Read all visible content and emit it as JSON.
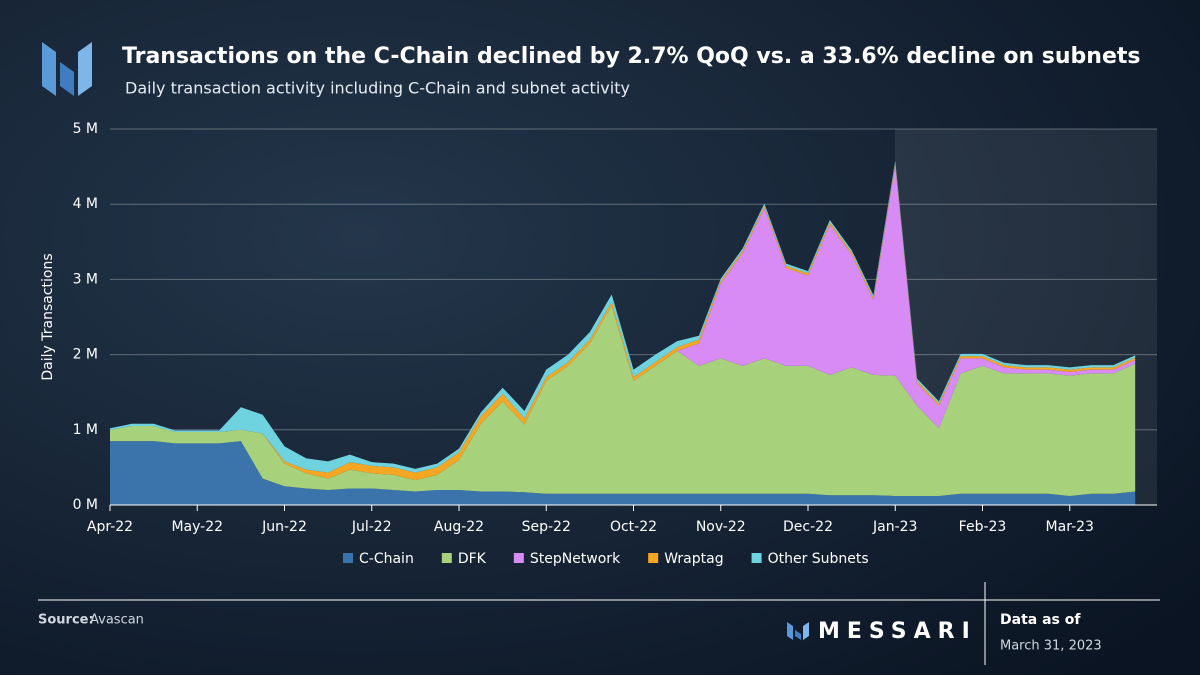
{
  "chart_data": {
    "type": "stacked-area",
    "title": "Transactions on the C-Chain declined by 2.7% QoQ vs. a 33.6% decline on subnets",
    "subtitle": "Daily transaction activity including C-Chain and subnet activity",
    "y_label": "Daily Transactions",
    "categories": [
      "Apr-22",
      null,
      null,
      null,
      "May-22",
      null,
      null,
      null,
      "Jun-22",
      null,
      null,
      null,
      "Jul-22",
      null,
      null,
      null,
      "Aug-22",
      null,
      null,
      null,
      "Sep-22",
      null,
      null,
      null,
      "Oct-22",
      null,
      null,
      null,
      "Nov-22",
      null,
      null,
      null,
      "Dec-22",
      null,
      null,
      null,
      "Jan-23",
      null,
      null,
      null,
      "Feb-23",
      null,
      null,
      null,
      "Mar-23",
      null,
      null,
      null
    ],
    "ylim": [
      0,
      5
    ],
    "yticks": [
      {
        "value": 0,
        "label": "0 M"
      },
      {
        "value": 1,
        "label": "1 M"
      },
      {
        "value": 2,
        "label": "2 M"
      },
      {
        "value": 3,
        "label": "3 M"
      },
      {
        "value": 4,
        "label": "4 M"
      },
      {
        "value": 5,
        "label": "5 M"
      }
    ],
    "grid": true,
    "legend": "bottom",
    "series": [
      {
        "name": "C-Chain",
        "color": "#3b74ab",
        "values": [
          0.85,
          0.85,
          0.85,
          0.82,
          0.82,
          0.82,
          0.85,
          0.35,
          0.25,
          0.22,
          0.2,
          0.22,
          0.22,
          0.2,
          0.18,
          0.2,
          0.2,
          0.18,
          0.18,
          0.17,
          0.15,
          0.15,
          0.15,
          0.15,
          0.15,
          0.15,
          0.15,
          0.15,
          0.15,
          0.15,
          0.15,
          0.15,
          0.15,
          0.13,
          0.13,
          0.13,
          0.12,
          0.12,
          0.12,
          0.15,
          0.15,
          0.15,
          0.15,
          0.15,
          0.12,
          0.15,
          0.15,
          0.18
        ]
      },
      {
        "name": "DFK",
        "color": "#a8d17c",
        "values": [
          0.15,
          0.2,
          0.2,
          0.15,
          0.15,
          0.15,
          0.15,
          0.6,
          0.3,
          0.2,
          0.15,
          0.25,
          0.2,
          0.2,
          0.15,
          0.2,
          0.4,
          0.9,
          1.2,
          0.9,
          1.5,
          1.7,
          2.0,
          2.5,
          1.5,
          1.7,
          1.9,
          1.7,
          1.8,
          1.7,
          1.8,
          1.7,
          1.7,
          1.6,
          1.7,
          1.6,
          1.6,
          1.2,
          0.9,
          1.6,
          1.7,
          1.6,
          1.6,
          1.6,
          1.6,
          1.6,
          1.6,
          1.7
        ]
      },
      {
        "name": "StepNetwork",
        "color": "#d88af5",
        "values": [
          0,
          0,
          0,
          0,
          0,
          0,
          0,
          0,
          0,
          0,
          0,
          0,
          0,
          0,
          0,
          0,
          0,
          0,
          0,
          0,
          0,
          0,
          0,
          0,
          0,
          0,
          0,
          0.3,
          1.0,
          1.5,
          2.0,
          1.3,
          1.2,
          2.0,
          1.5,
          1.0,
          2.8,
          0.3,
          0.3,
          0.2,
          0.1,
          0.08,
          0.05,
          0.05,
          0.05,
          0.05,
          0.05,
          0.05
        ]
      },
      {
        "name": "Wraptag",
        "color": "#f5a623",
        "values": [
          0,
          0,
          0,
          0,
          0,
          0,
          0,
          0,
          0.03,
          0.05,
          0.08,
          0.1,
          0.1,
          0.1,
          0.1,
          0.1,
          0.1,
          0.1,
          0.1,
          0.08,
          0.05,
          0.05,
          0.05,
          0.05,
          0.05,
          0.05,
          0.05,
          0.05,
          0.03,
          0.03,
          0.03,
          0.03,
          0.03,
          0.03,
          0.03,
          0.03,
          0.03,
          0.03,
          0.03,
          0.03,
          0.03,
          0.03,
          0.03,
          0.03,
          0.03,
          0.03,
          0.03,
          0.03
        ]
      },
      {
        "name": "Other Subnets",
        "color": "#6fd3df",
        "values": [
          0.02,
          0.03,
          0.03,
          0.02,
          0.02,
          0.02,
          0.3,
          0.25,
          0.2,
          0.15,
          0.15,
          0.1,
          0.05,
          0.05,
          0.05,
          0.05,
          0.05,
          0.05,
          0.08,
          0.1,
          0.1,
          0.1,
          0.1,
          0.1,
          0.1,
          0.1,
          0.08,
          0.05,
          0.03,
          0.03,
          0.03,
          0.03,
          0.03,
          0.03,
          0.03,
          0.03,
          0.03,
          0.03,
          0.03,
          0.03,
          0.03,
          0.03,
          0.03,
          0.03,
          0.03,
          0.03,
          0.03,
          0.03
        ]
      }
    ]
  },
  "footer": {
    "source_label": "Source:",
    "source": "Avascan",
    "brand": "MESSARI",
    "date_label": "Data as of",
    "date": "March 31, 2023"
  }
}
